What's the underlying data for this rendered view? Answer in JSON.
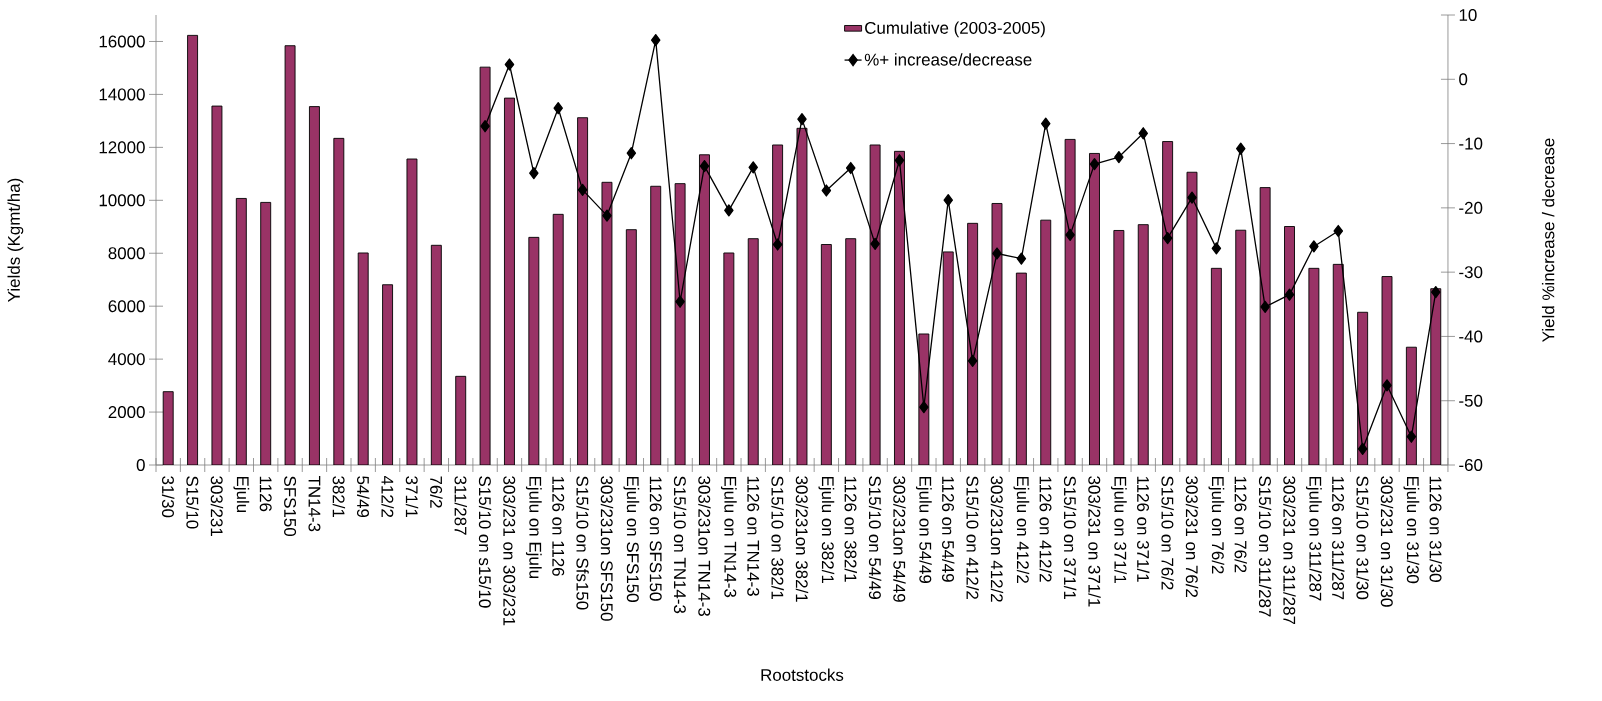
{
  "chart_data": {
    "type": "bar",
    "xlabel": "Rootstocks",
    "ylabel": "Yields (Kgmt/ha)",
    "y2label": "Yield %increase / decrease",
    "categories": [
      "31/30",
      "S15/10",
      "303/231",
      "Ejulu",
      "1126",
      "SFS150",
      "TN14-3",
      "382/1",
      "54/49",
      "412/2",
      "371/1",
      "76/2",
      "311/287",
      "S15/10 on s15/10",
      "303/231 on 303/231",
      "Ejulu on Ejulu",
      "1126 on 1126",
      "S15/10 on Sfs150",
      "303/231on SFS150",
      "Ejulu on SFS150",
      "1126 on SFS150",
      "S15/10 on TN14-3",
      "303/231on TN14-3",
      "Ejulu on TN14-3",
      "1126 on TN14-3",
      "S15/10 on 382/1",
      "303/231on 382/1",
      "Ejulu on 382/1",
      "1126 on 382/1",
      "S15/10 on 54/49",
      "303/231on 54/49",
      "Ejulu on 54/49",
      "1126 on 54/49",
      "S15/10 on 412/2",
      "303/231on 412/2",
      "Ejulu on 412/2",
      "1126 on 412/2",
      "S15/10 on 371/1",
      "303/231 on 371/1",
      "Ejulu on 371/1",
      "1126 on 371/1",
      "S15/10 on 76/2",
      "303/231 on 76/2",
      "Ejulu on 76/2",
      "1126 on 76/2",
      "S15/10 on 311/287",
      "303/231 on 311/287",
      "Ejulu on 311/287",
      "1126 on 311/287",
      "S15/10 on 31/30",
      "303/231 on 31/30",
      "Ejulu on 31/30",
      "1126 on 31/30"
    ],
    "ylim": [
      0,
      17000
    ],
    "yticks": [
      0,
      2000,
      4000,
      6000,
      8000,
      10000,
      12000,
      14000,
      16000
    ],
    "y2lim": [
      -60,
      10
    ],
    "y2ticks": [
      -60,
      -50,
      -40,
      -30,
      -20,
      -10,
      0,
      10
    ],
    "legend": "top right",
    "grid": false,
    "series": [
      {
        "name": "Cumulative (2003-2005)",
        "color": "#993366",
        "values": [
          2770,
          16230,
          13560,
          10070,
          9920,
          15840,
          13540,
          12340,
          8010,
          6810,
          11560,
          8300,
          3350,
          15030,
          13860,
          8600,
          9470,
          13120,
          10680,
          8890,
          10530,
          10630,
          11720,
          8010,
          8550,
          12090,
          12720,
          8330,
          8550,
          12090,
          11850,
          4950,
          8050,
          9130,
          9880,
          7250,
          9250,
          12300,
          11770,
          8860,
          9080,
          12220,
          11060,
          7430,
          8870,
          10480,
          9010,
          7430,
          7580,
          5770,
          7120,
          4450,
          6660
        ]
      },
      {
        "name": "%+ increase/decrease",
        "type": "line",
        "axis": "y2",
        "color": "#000000",
        "marker": "diamond",
        "values": [
          null,
          null,
          null,
          null,
          null,
          null,
          null,
          null,
          null,
          null,
          null,
          null,
          null,
          -7.3,
          2.3,
          -14.6,
          -4.5,
          -17.2,
          -21.2,
          -11.5,
          6.1,
          -34.6,
          -13.5,
          -20.4,
          -13.7,
          -25.7,
          -6.2,
          -17.3,
          -13.8,
          -25.6,
          -12.6,
          -51,
          -18.8,
          -43.8,
          -27.1,
          -27.9,
          -6.9,
          -24.2,
          -13.2,
          -12.1,
          -8.4,
          -24.7,
          -18.4,
          -26.3,
          -10.8,
          -35.4,
          -33.5,
          -26,
          -23.6,
          -57.5,
          -47.6,
          -55.6,
          -33.1
        ]
      }
    ]
  }
}
